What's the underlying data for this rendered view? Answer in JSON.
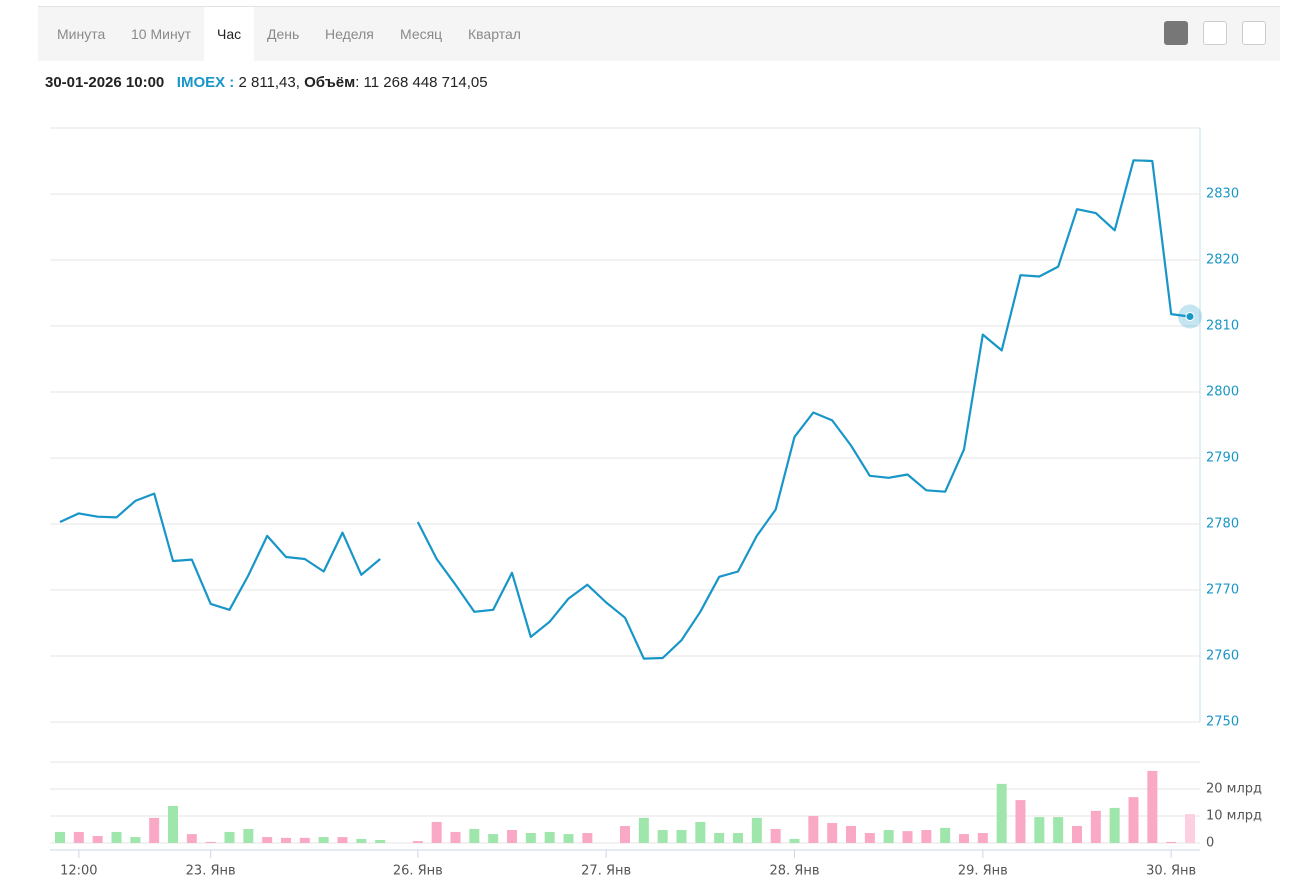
{
  "toolbar": {
    "tabs": [
      "Минута",
      "10 Минут",
      "Час",
      "День",
      "Неделя",
      "Месяц",
      "Квартал"
    ],
    "active": 2
  },
  "header": {
    "datetime": "30-01-2026 10:00",
    "ticker": "IMOEX :",
    "price": "2 811,43,",
    "volume_label": "Объём",
    "volume_value": ": 11 268 448 714,05"
  },
  "chart_data": [
    {
      "type": "line",
      "color": "#1896c8",
      "values": [
        2780.3,
        2781.6,
        2781.1,
        2781.0,
        2783.5,
        2784.6,
        2774.4,
        2774.6,
        2767.9,
        2767.0,
        2772.2,
        2778.2,
        2775.0,
        2774.7,
        2772.8,
        2778.7,
        2772.3,
        2774.7,
        null,
        2780.3,
        2774.7,
        2770.8,
        2766.7,
        2767.0,
        2772.6,
        2762.9,
        2765.2,
        2768.7,
        2770.8,
        2768.1,
        2765.8,
        2759.6,
        2759.7,
        2762.4,
        2766.7,
        2772.0,
        2772.8,
        2778.2,
        2782.2,
        2793.2,
        2796.9,
        2795.7,
        2791.9,
        2787.3,
        2787.0,
        2787.5,
        2785.1,
        2784.9,
        2791.3,
        2808.7,
        2806.3,
        2817.7,
        2817.5,
        2819.0,
        2827.7,
        2827.1,
        2824.5,
        2835.1,
        2835.0,
        2811.8,
        2811.43
      ],
      "ylim": [
        2750,
        2840
      ],
      "yticks": [
        2750,
        2760,
        2770,
        2780,
        2790,
        2800,
        2810,
        2820,
        2830
      ],
      "grid": true
    },
    {
      "type": "bar",
      "categories": [
        null,
        "12:00",
        null,
        null,
        null,
        null,
        null,
        null,
        "23. Янв",
        null,
        null,
        null,
        null,
        null,
        null,
        null,
        null,
        null,
        null,
        "26. Янв",
        null,
        null,
        null,
        null,
        null,
        null,
        null,
        null,
        null,
        "27. Янв",
        null,
        null,
        null,
        null,
        null,
        null,
        null,
        null,
        null,
        "28. Янв",
        null,
        null,
        null,
        null,
        null,
        null,
        null,
        null,
        null,
        "29. Янв",
        null,
        null,
        null,
        null,
        null,
        null,
        null,
        null,
        null,
        "30. Янв",
        null
      ],
      "values": [
        4.1,
        4.1,
        2.6,
        4.1,
        2.2,
        9.3,
        13.7,
        3.3,
        0.4,
        4.1,
        5.2,
        2.2,
        1.9,
        1.9,
        2.2,
        2.2,
        1.5,
        1.1,
        null,
        0.7,
        7.8,
        4.1,
        5.2,
        3.3,
        4.8,
        3.7,
        4.1,
        3.3,
        3.7,
        null,
        6.3,
        9.3,
        4.8,
        4.8,
        7.8,
        3.7,
        3.7,
        9.3,
        5.2,
        1.5,
        10,
        7.4,
        6.3,
        3.7,
        4.8,
        4.4,
        4.8,
        5.6,
        3.3,
        3.7,
        21.9,
        15.9,
        9.6,
        9.6,
        6.3,
        11.9,
        13,
        17,
        26.7,
        0.4,
        10.7
      ],
      "colors": [
        "#9ee6ab",
        "#f9a9c5",
        "#f9a9c5",
        "#9ee6ab",
        "#9ee6ab",
        "#f9a9c5",
        "#9ee6ab",
        "#f9a9c5",
        "#f9a9c5",
        "#9ee6ab",
        "#9ee6ab",
        "#f9a9c5",
        "#f9a9c5",
        "#f9a9c5",
        "#9ee6ab",
        "#f9a9c5",
        "#9ee6ab",
        "#9ee6ab",
        null,
        "#f9a9c5",
        "#f9a9c5",
        "#f9a9c5",
        "#9ee6ab",
        "#9ee6ab",
        "#f9a9c5",
        "#9ee6ab",
        "#9ee6ab",
        "#9ee6ab",
        "#f9a9c5",
        null,
        "#f9a9c5",
        "#9ee6ab",
        "#9ee6ab",
        "#9ee6ab",
        "#9ee6ab",
        "#9ee6ab",
        "#9ee6ab",
        "#9ee6ab",
        "#f9a9c5",
        "#9ee6ab",
        "#f9a9c5",
        "#f9a9c5",
        "#f9a9c5",
        "#f9a9c5",
        "#9ee6ab",
        "#f9a9c5",
        "#f9a9c5",
        "#9ee6ab",
        "#f9a9c5",
        "#f9a9c5",
        "#9ee6ab",
        "#f9a9c5",
        "#9ee6ab",
        "#9ee6ab",
        "#f9a9c5",
        "#f9a9c5",
        "#9ee6ab",
        "#f9a9c5",
        "#f9a9c5",
        "#f9a9c5",
        "#fcd0e0"
      ],
      "ylim": [
        0,
        30
      ],
      "yticks": [
        0,
        {
          "value": 10,
          "label": "10 млрд"
        },
        {
          "value": 20,
          "label": "20 млрд"
        }
      ],
      "grid": true
    }
  ]
}
